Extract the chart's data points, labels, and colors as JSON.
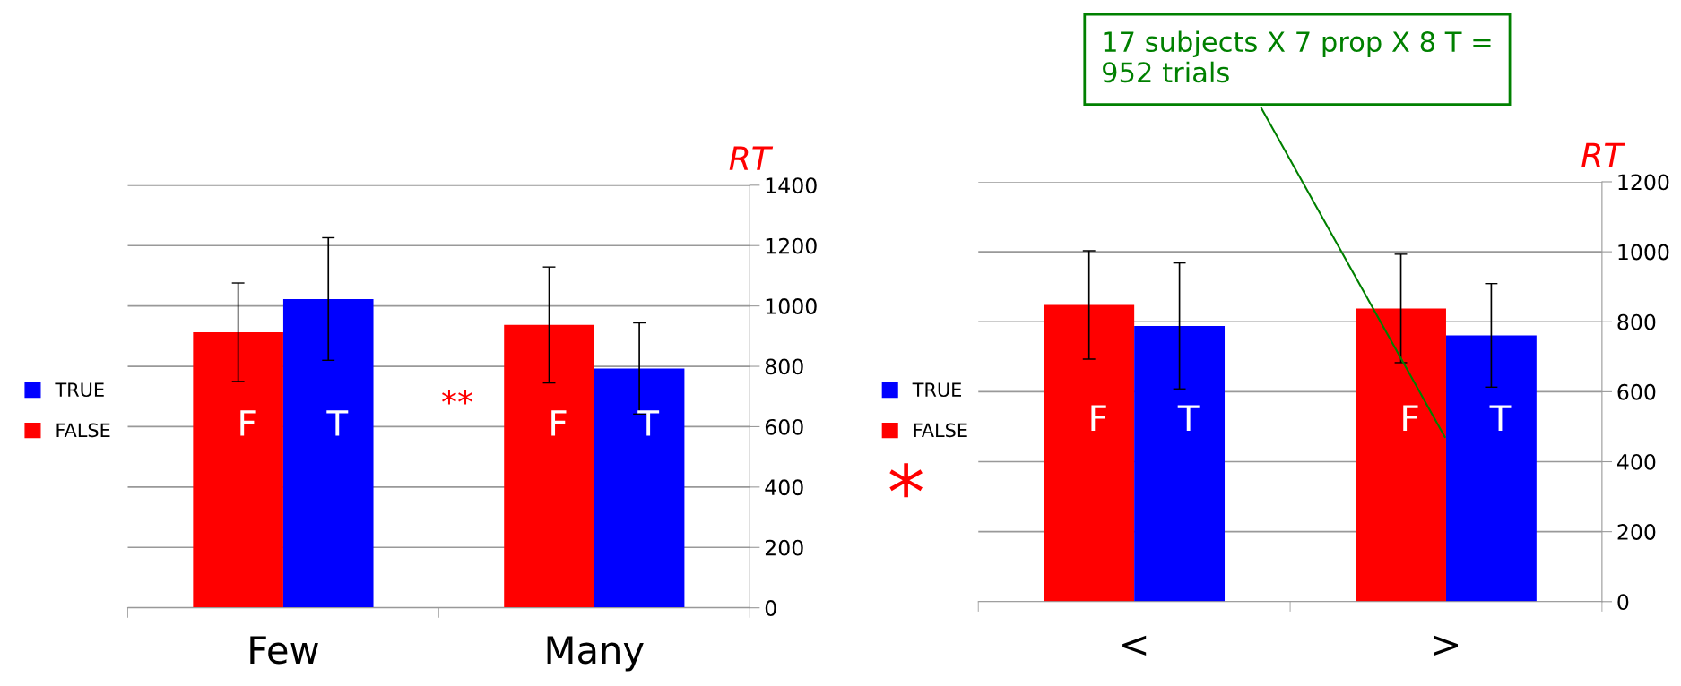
{
  "chart_data": [
    {
      "type": "bar",
      "ylabel": "RT",
      "categories": [
        "Few",
        "Many"
      ],
      "series": [
        {
          "name": "FALSE",
          "color": "#ff0000",
          "values": [
            913,
            937
          ],
          "errors": [
            163,
            192
          ],
          "value_labels": [
            "F",
            "F"
          ]
        },
        {
          "name": "TRUE",
          "color": "#0000ff",
          "values": [
            1023,
            793
          ],
          "errors": [
            203,
            151
          ],
          "value_labels": [
            "T",
            "T"
          ]
        }
      ],
      "ylim": [
        0,
        1400
      ],
      "yticks": [
        0,
        200,
        400,
        600,
        800,
        1000,
        1200,
        1400
      ],
      "grid": "y",
      "legend": "left",
      "annotations": [
        "**"
      ]
    },
    {
      "type": "bar",
      "ylabel": "RT",
      "categories": [
        "<",
        ">"
      ],
      "series": [
        {
          "name": "FALSE",
          "color": "#ff0000",
          "values": [
            848,
            838
          ],
          "errors": [
            155,
            155
          ],
          "value_labels": [
            "F",
            "F"
          ]
        },
        {
          "name": "TRUE",
          "color": "#0000ff",
          "values": [
            788,
            761
          ],
          "errors": [
            180,
            148
          ],
          "value_labels": [
            "T",
            "T"
          ]
        }
      ],
      "ylim": [
        0,
        1200
      ],
      "yticks": [
        0,
        200,
        400,
        600,
        800,
        1000,
        1200
      ],
      "grid": "y",
      "legend": "left",
      "annotations": [
        "*",
        {
          "text": "17 subjects X 7 prop X 8 T =\n952 trials",
          "x": ">",
          "y": 464
        }
      ]
    }
  ]
}
